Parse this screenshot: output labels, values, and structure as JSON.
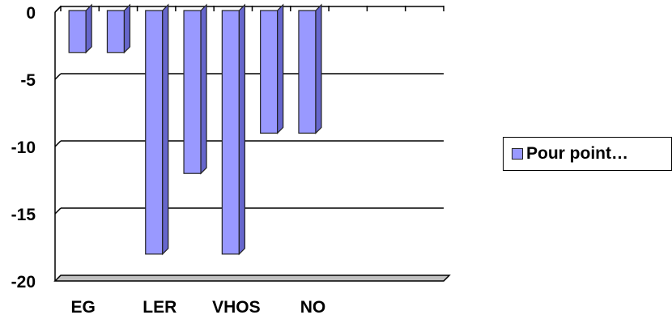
{
  "chart_data": {
    "type": "bar",
    "categories": [
      "EG",
      "",
      "LER",
      "",
      "VHOS",
      "",
      "NO",
      "",
      "",
      ""
    ],
    "series": [
      {
        "name": "Pour point…",
        "values": [
          -3,
          -3,
          -18,
          -12,
          -18,
          -9,
          -9,
          null,
          null,
          null
        ]
      }
    ],
    "ylim": [
      -20,
      0
    ],
    "y_ticks": [
      0,
      -5,
      -10,
      -15,
      -20
    ],
    "y_tick_labels": [
      "0",
      "-5",
      "-10",
      "-15",
      "-20"
    ],
    "grid": true,
    "legend_position": "right",
    "colors": {
      "bar_front": "#9999ff",
      "bar_side": "#6666cc",
      "bar_outline": "#222222",
      "floor": "#c0c0c0"
    }
  }
}
